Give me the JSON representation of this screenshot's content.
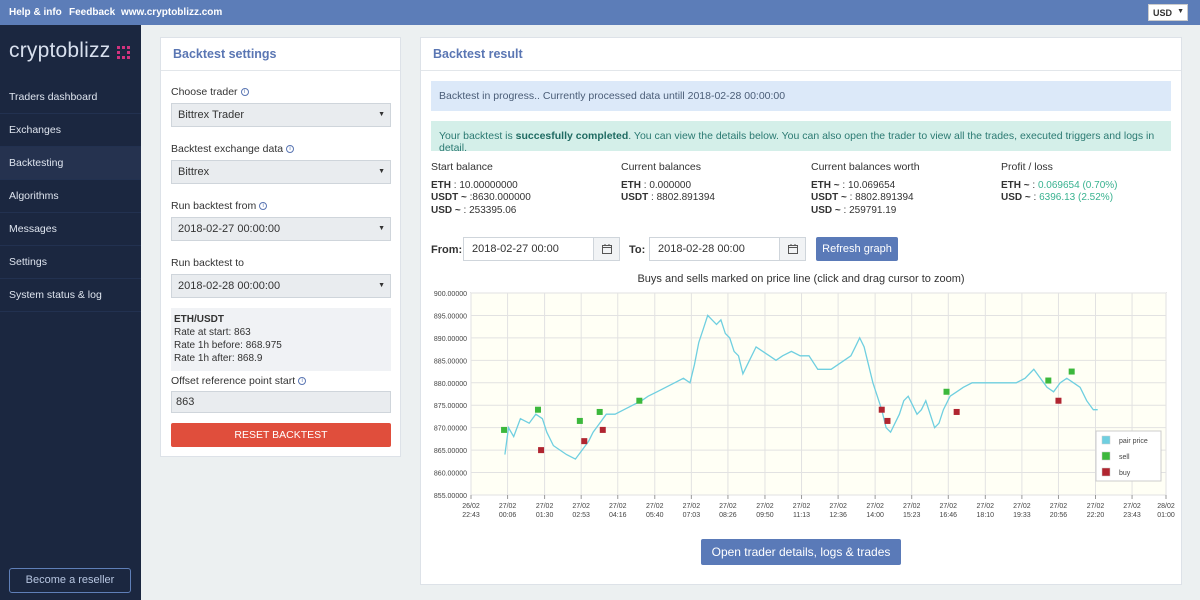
{
  "topbar": {
    "help": "Help & info",
    "feedback": "Feedback",
    "site": "www.cryptoblizz.com",
    "currency": "USD"
  },
  "sidebar": {
    "logo": "cryptoblizz",
    "items": [
      {
        "label": "Traders dashboard"
      },
      {
        "label": "Exchanges"
      },
      {
        "label": "Backtesting"
      },
      {
        "label": "Algorithms"
      },
      {
        "label": "Messages"
      },
      {
        "label": "Settings"
      },
      {
        "label": "System status & log"
      }
    ],
    "reseller": "Become a reseller"
  },
  "settings": {
    "title": "Backtest settings",
    "trader_label": "Choose trader",
    "trader_value": "Bittrex Trader",
    "exchange_label": "Backtest exchange data",
    "exchange_value": "Bittrex",
    "from_label": "Run backtest from",
    "from_value": "2018-02-27 00:00:00",
    "to_label": "Run backtest to",
    "to_value": "2018-02-28 00:00:00",
    "pair": "ETH/USDT",
    "rate_start": "Rate at start: 863",
    "rate_before": "Rate 1h before: 868.975",
    "rate_after": "Rate 1h after: 868.9",
    "offset_label": "Offset reference point start",
    "offset_value": "863",
    "reset": "RESET BACKTEST"
  },
  "result": {
    "title": "Backtest result",
    "progress": "Backtest in progress.. Currently processed data untill 2018-02-28 00:00:00",
    "success_pre": "Your backtest is ",
    "success_bold": "succesfully completed",
    "success_post": ". You can view the details below. You can also open the trader to view all the trades, executed triggers and logs in detail.",
    "start_balance": {
      "header": "Start balance",
      "eth_k": "ETH",
      "eth_v": " : 10.00000000",
      "usdt_k": "USDT ~",
      "usdt_v": " :8630.000000",
      "usd_k": "USD ~",
      "usd_v": " : 253395.06"
    },
    "current_balances": {
      "header": "Current balances",
      "eth_k": "ETH",
      "eth_v": " : 0.000000",
      "usdt_k": "USDT",
      "usdt_v": " : 8802.891394"
    },
    "balances_worth": {
      "header": "Current balances worth",
      "eth_k": "ETH ~",
      "eth_v": " : 10.069654",
      "usdt_k": "USDT ~",
      "usdt_v": " : 8802.891394",
      "usd_k": "USD ~",
      "usd_v": " : 259791.19"
    },
    "profit": {
      "header": "Profit / loss",
      "eth_k": "ETH ~",
      "eth_v": " : ",
      "eth_g": "0.069654 (0.70%)",
      "usd_k": "USD ~",
      "usd_v": " : ",
      "usd_g": "6396.13 (2.52%)"
    },
    "from_label": "From:",
    "from_value": "2018-02-27 00:00",
    "to_label": "To:",
    "to_value": "2018-02-28 00:00",
    "refresh": "Refresh graph",
    "chart_title": "Buys and sells marked on price line (click and drag cursor to zoom)",
    "open_button": "Open trader details, logs & trades"
  },
  "colors": {
    "price": "#6fcfe0",
    "sell": "#3cb83c",
    "buy": "#b02530",
    "accent": "#5a7ab8"
  },
  "chart_data": {
    "type": "line",
    "ylim": [
      855,
      900
    ],
    "ytick_labels": [
      "900.00000",
      "895.00000",
      "890.00000",
      "885.00000",
      "880.00000",
      "875.00000",
      "870.00000",
      "865.00000",
      "860.00000",
      "855.00000"
    ],
    "ytick_values": [
      900,
      895,
      890,
      885,
      880,
      875,
      870,
      865,
      860,
      855
    ],
    "xlim": [
      -77,
      1441
    ],
    "xtick_minutes": [
      -77,
      6,
      90,
      173,
      256,
      340,
      423,
      506,
      590,
      673,
      756,
      840,
      923,
      1006,
      1090,
      1173,
      1256,
      1340,
      1423
    ],
    "xtick_labels": [
      [
        "26/02",
        "22:43"
      ],
      [
        "27/02",
        "00:06"
      ],
      [
        "27/02",
        "01:30"
      ],
      [
        "27/02",
        "02:53"
      ],
      [
        "27/02",
        "04:16"
      ],
      [
        "27/02",
        "05:40"
      ],
      [
        "27/02",
        "07:03"
      ],
      [
        "27/02",
        "08:26"
      ],
      [
        "27/02",
        "09:50"
      ],
      [
        "27/02",
        "11:13"
      ],
      [
        "27/02",
        "12:36"
      ],
      [
        "27/02",
        "14:00"
      ],
      [
        "27/02",
        "15:23"
      ],
      [
        "27/02",
        "16:46"
      ],
      [
        "27/02",
        "18:10"
      ],
      [
        "27/02",
        "19:33"
      ],
      [
        "27/02",
        "20:56"
      ],
      [
        "27/02",
        "22:20"
      ],
      [
        "27/02",
        "23:43"
      ],
      [
        "28/02",
        "01:00"
      ]
    ],
    "xtick_minutes_all": [
      -77,
      6,
      90,
      173,
      256,
      340,
      423,
      506,
      590,
      673,
      756,
      840,
      923,
      1006,
      1090,
      1173,
      1256,
      1340,
      1423,
      1500
    ],
    "series": [
      {
        "name": "pair price",
        "points": [
          [
            0,
            864
          ],
          [
            8,
            870
          ],
          [
            20,
            868
          ],
          [
            35,
            872
          ],
          [
            55,
            871
          ],
          [
            70,
            873
          ],
          [
            85,
            872
          ],
          [
            95,
            869
          ],
          [
            110,
            866
          ],
          [
            125,
            865
          ],
          [
            140,
            864
          ],
          [
            160,
            863
          ],
          [
            175,
            865
          ],
          [
            190,
            867
          ],
          [
            200,
            869
          ],
          [
            215,
            871
          ],
          [
            230,
            873
          ],
          [
            250,
            873
          ],
          [
            270,
            874
          ],
          [
            290,
            875
          ],
          [
            310,
            876
          ],
          [
            325,
            877
          ],
          [
            345,
            878
          ],
          [
            365,
            879
          ],
          [
            385,
            880
          ],
          [
            405,
            881
          ],
          [
            420,
            880
          ],
          [
            430,
            884
          ],
          [
            440,
            889
          ],
          [
            450,
            892
          ],
          [
            460,
            895
          ],
          [
            470,
            894
          ],
          [
            480,
            893
          ],
          [
            490,
            894
          ],
          [
            500,
            891
          ],
          [
            510,
            890
          ],
          [
            520,
            887
          ],
          [
            530,
            886
          ],
          [
            540,
            882
          ],
          [
            555,
            885
          ],
          [
            570,
            888
          ],
          [
            585,
            887
          ],
          [
            600,
            886
          ],
          [
            615,
            885
          ],
          [
            630,
            886
          ],
          [
            650,
            887
          ],
          [
            670,
            886
          ],
          [
            690,
            886
          ],
          [
            710,
            883
          ],
          [
            725,
            883
          ],
          [
            740,
            883
          ],
          [
            755,
            884
          ],
          [
            770,
            885
          ],
          [
            785,
            886
          ],
          [
            795,
            888
          ],
          [
            805,
            890
          ],
          [
            815,
            888
          ],
          [
            825,
            884
          ],
          [
            835,
            880
          ],
          [
            845,
            877
          ],
          [
            855,
            874
          ],
          [
            865,
            870
          ],
          [
            875,
            869
          ],
          [
            885,
            871
          ],
          [
            895,
            873
          ],
          [
            905,
            876
          ],
          [
            915,
            877
          ],
          [
            925,
            875
          ],
          [
            935,
            873
          ],
          [
            945,
            874
          ],
          [
            955,
            876
          ],
          [
            965,
            873
          ],
          [
            975,
            870
          ],
          [
            985,
            871
          ],
          [
            995,
            874
          ],
          [
            1010,
            877
          ],
          [
            1025,
            878
          ],
          [
            1040,
            879
          ],
          [
            1060,
            880
          ],
          [
            1080,
            880
          ],
          [
            1100,
            880
          ],
          [
            1120,
            880
          ],
          [
            1140,
            880
          ],
          [
            1160,
            880
          ],
          [
            1180,
            881
          ],
          [
            1200,
            883
          ],
          [
            1215,
            881
          ],
          [
            1230,
            879
          ],
          [
            1245,
            878
          ],
          [
            1260,
            880
          ],
          [
            1275,
            881
          ],
          [
            1290,
            880
          ],
          [
            1305,
            879
          ],
          [
            1320,
            876
          ],
          [
            1335,
            874
          ],
          [
            1345,
            874
          ]
        ]
      },
      {
        "name": "sell",
        "points": [
          [
            -2,
            869.5
          ],
          [
            75,
            874
          ],
          [
            170,
            871.5
          ],
          [
            215,
            873.5
          ],
          [
            305,
            876
          ],
          [
            1002,
            878
          ],
          [
            1233,
            880.5
          ],
          [
            1286,
            882.5
          ]
        ]
      },
      {
        "name": "buy",
        "points": [
          [
            82,
            865
          ],
          [
            180,
            867
          ],
          [
            222,
            869.5
          ],
          [
            855,
            874
          ],
          [
            868,
            871.5
          ],
          [
            1025,
            873.5
          ],
          [
            1256,
            876
          ]
        ]
      }
    ],
    "legend": {
      "position": "bottom-right",
      "entries": [
        "pair price",
        "sell",
        "buy"
      ]
    },
    "grid": true
  }
}
